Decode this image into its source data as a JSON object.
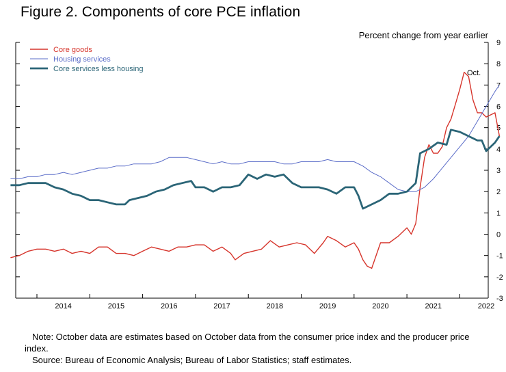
{
  "figure": {
    "title": "Figure 2. Components of core PCE inflation",
    "note": "Note: October data are estimates based on October data from the consumer price index and the producer price index.",
    "source": "Source: Bureau of Economic Analysis; Bureau of Labor Statistics; staff estimates."
  },
  "chart_data": {
    "type": "line",
    "title": "Figure 2. Components of core PCE inflation",
    "ylabel": "Percent change from year earlier",
    "ylim": [
      -3,
      9
    ],
    "yticks": [
      -3,
      -2,
      -1,
      0,
      1,
      2,
      3,
      4,
      5,
      6,
      7,
      8,
      9
    ],
    "y_axis_side": "right",
    "x_axis_type": "time",
    "x_range": [
      "2013-07",
      "2022-10"
    ],
    "xtick_labels": [
      "2014",
      "2015",
      "2016",
      "2017",
      "2018",
      "2019",
      "2020",
      "2021",
      "2022"
    ],
    "grid": false,
    "legend_position": "top-left",
    "annotation": "Oct.",
    "series": [
      {
        "name": "Core goods",
        "color": "#d6342b",
        "line_width": 1.4,
        "points": [
          [
            "2013-07",
            -1.1
          ],
          [
            "2013-09",
            -1.0
          ],
          [
            "2013-11",
            -0.8
          ],
          [
            "2014-01",
            -0.7
          ],
          [
            "2014-03",
            -0.7
          ],
          [
            "2014-05",
            -0.8
          ],
          [
            "2014-07",
            -0.7
          ],
          [
            "2014-09",
            -0.9
          ],
          [
            "2014-11",
            -0.8
          ],
          [
            "2015-01",
            -0.9
          ],
          [
            "2015-03",
            -0.6
          ],
          [
            "2015-05",
            -0.6
          ],
          [
            "2015-07",
            -0.9
          ],
          [
            "2015-09",
            -0.9
          ],
          [
            "2015-11",
            -1.0
          ],
          [
            "2016-01",
            -0.8
          ],
          [
            "2016-03",
            -0.6
          ],
          [
            "2016-05",
            -0.7
          ],
          [
            "2016-07",
            -0.8
          ],
          [
            "2016-09",
            -0.6
          ],
          [
            "2016-11",
            -0.6
          ],
          [
            "2017-01",
            -0.5
          ],
          [
            "2017-03",
            -0.5
          ],
          [
            "2017-05",
            -0.8
          ],
          [
            "2017-07",
            -0.6
          ],
          [
            "2017-09",
            -0.9
          ],
          [
            "2017-10",
            -1.2
          ],
          [
            "2017-12",
            -0.9
          ],
          [
            "2018-02",
            -0.8
          ],
          [
            "2018-04",
            -0.7
          ],
          [
            "2018-06",
            -0.3
          ],
          [
            "2018-08",
            -0.6
          ],
          [
            "2018-10",
            -0.5
          ],
          [
            "2018-12",
            -0.4
          ],
          [
            "2019-02",
            -0.5
          ],
          [
            "2019-04",
            -0.9
          ],
          [
            "2019-06",
            -0.4
          ],
          [
            "2019-07",
            -0.1
          ],
          [
            "2019-09",
            -0.3
          ],
          [
            "2019-11",
            -0.6
          ],
          [
            "2020-01",
            -0.4
          ],
          [
            "2020-02",
            -0.7
          ],
          [
            "2020-03",
            -1.2
          ],
          [
            "2020-04",
            -1.5
          ],
          [
            "2020-05",
            -1.6
          ],
          [
            "2020-07",
            -0.4
          ],
          [
            "2020-09",
            -0.4
          ],
          [
            "2020-11",
            -0.1
          ],
          [
            "2021-01",
            0.3
          ],
          [
            "2021-02",
            0.0
          ],
          [
            "2021-03",
            0.5
          ],
          [
            "2021-04",
            2.2
          ],
          [
            "2021-05",
            3.6
          ],
          [
            "2021-06",
            4.2
          ],
          [
            "2021-07",
            3.8
          ],
          [
            "2021-08",
            3.8
          ],
          [
            "2021-09",
            4.1
          ],
          [
            "2021-10",
            5.0
          ],
          [
            "2021-11",
            5.4
          ],
          [
            "2021-12",
            6.1
          ],
          [
            "2022-01",
            6.8
          ],
          [
            "2022-02",
            7.6
          ],
          [
            "2022-03",
            7.4
          ],
          [
            "2022-04",
            6.3
          ],
          [
            "2022-05",
            5.7
          ],
          [
            "2022-06",
            5.7
          ],
          [
            "2022-07",
            5.5
          ],
          [
            "2022-08",
            5.6
          ],
          [
            "2022-09",
            5.7
          ],
          [
            "2022-10",
            4.6
          ]
        ]
      },
      {
        "name": "Housing services",
        "color": "#5a6cc8",
        "line_width": 1.0,
        "points": [
          [
            "2013-07",
            2.6
          ],
          [
            "2013-09",
            2.6
          ],
          [
            "2013-11",
            2.7
          ],
          [
            "2014-01",
            2.7
          ],
          [
            "2014-03",
            2.8
          ],
          [
            "2014-05",
            2.8
          ],
          [
            "2014-07",
            2.9
          ],
          [
            "2014-09",
            2.8
          ],
          [
            "2014-11",
            2.9
          ],
          [
            "2015-01",
            3.0
          ],
          [
            "2015-03",
            3.1
          ],
          [
            "2015-05",
            3.1
          ],
          [
            "2015-07",
            3.2
          ],
          [
            "2015-09",
            3.2
          ],
          [
            "2015-11",
            3.3
          ],
          [
            "2016-01",
            3.3
          ],
          [
            "2016-03",
            3.3
          ],
          [
            "2016-05",
            3.4
          ],
          [
            "2016-07",
            3.6
          ],
          [
            "2016-09",
            3.6
          ],
          [
            "2016-11",
            3.6
          ],
          [
            "2017-01",
            3.5
          ],
          [
            "2017-03",
            3.4
          ],
          [
            "2017-05",
            3.3
          ],
          [
            "2017-07",
            3.4
          ],
          [
            "2017-09",
            3.3
          ],
          [
            "2017-11",
            3.3
          ],
          [
            "2018-01",
            3.4
          ],
          [
            "2018-03",
            3.4
          ],
          [
            "2018-05",
            3.4
          ],
          [
            "2018-07",
            3.4
          ],
          [
            "2018-09",
            3.3
          ],
          [
            "2018-11",
            3.3
          ],
          [
            "2019-01",
            3.4
          ],
          [
            "2019-03",
            3.4
          ],
          [
            "2019-05",
            3.4
          ],
          [
            "2019-07",
            3.5
          ],
          [
            "2019-09",
            3.4
          ],
          [
            "2019-11",
            3.4
          ],
          [
            "2020-01",
            3.4
          ],
          [
            "2020-03",
            3.2
          ],
          [
            "2020-05",
            2.9
          ],
          [
            "2020-07",
            2.7
          ],
          [
            "2020-09",
            2.4
          ],
          [
            "2020-11",
            2.1
          ],
          [
            "2021-01",
            2.0
          ],
          [
            "2021-03",
            2.0
          ],
          [
            "2021-05",
            2.2
          ],
          [
            "2021-07",
            2.6
          ],
          [
            "2021-09",
            3.1
          ],
          [
            "2021-11",
            3.6
          ],
          [
            "2022-01",
            4.1
          ],
          [
            "2022-03",
            4.6
          ],
          [
            "2022-05",
            5.3
          ],
          [
            "2022-07",
            6.0
          ],
          [
            "2022-09",
            6.7
          ],
          [
            "2022-10",
            7.0
          ]
        ]
      },
      {
        "name": "Core services less housing",
        "color": "#2b6577",
        "line_width": 2.8,
        "points": [
          [
            "2013-07",
            2.3
          ],
          [
            "2013-09",
            2.3
          ],
          [
            "2013-11",
            2.4
          ],
          [
            "2014-01",
            2.4
          ],
          [
            "2014-03",
            2.4
          ],
          [
            "2014-05",
            2.2
          ],
          [
            "2014-07",
            2.1
          ],
          [
            "2014-09",
            1.9
          ],
          [
            "2014-11",
            1.8
          ],
          [
            "2015-01",
            1.6
          ],
          [
            "2015-03",
            1.6
          ],
          [
            "2015-05",
            1.5
          ],
          [
            "2015-07",
            1.4
          ],
          [
            "2015-09",
            1.4
          ],
          [
            "2015-10",
            1.6
          ],
          [
            "2015-12",
            1.7
          ],
          [
            "2016-02",
            1.8
          ],
          [
            "2016-04",
            2.0
          ],
          [
            "2016-06",
            2.1
          ],
          [
            "2016-08",
            2.3
          ],
          [
            "2016-10",
            2.4
          ],
          [
            "2016-12",
            2.5
          ],
          [
            "2017-01",
            2.2
          ],
          [
            "2017-03",
            2.2
          ],
          [
            "2017-05",
            2.0
          ],
          [
            "2017-07",
            2.2
          ],
          [
            "2017-09",
            2.2
          ],
          [
            "2017-11",
            2.3
          ],
          [
            "2018-01",
            2.8
          ],
          [
            "2018-03",
            2.6
          ],
          [
            "2018-05",
            2.8
          ],
          [
            "2018-07",
            2.7
          ],
          [
            "2018-09",
            2.8
          ],
          [
            "2018-11",
            2.4
          ],
          [
            "2019-01",
            2.2
          ],
          [
            "2019-03",
            2.2
          ],
          [
            "2019-05",
            2.2
          ],
          [
            "2019-07",
            2.1
          ],
          [
            "2019-09",
            1.9
          ],
          [
            "2019-11",
            2.2
          ],
          [
            "2020-01",
            2.2
          ],
          [
            "2020-02",
            1.8
          ],
          [
            "2020-03",
            1.2
          ],
          [
            "2020-05",
            1.4
          ],
          [
            "2020-07",
            1.6
          ],
          [
            "2020-09",
            1.9
          ],
          [
            "2020-11",
            1.9
          ],
          [
            "2021-01",
            2.0
          ],
          [
            "2021-03",
            2.4
          ],
          [
            "2021-04",
            3.8
          ],
          [
            "2021-06",
            4.0
          ],
          [
            "2021-08",
            4.3
          ],
          [
            "2021-10",
            4.2
          ],
          [
            "2021-11",
            4.9
          ],
          [
            "2022-01",
            4.8
          ],
          [
            "2022-03",
            4.6
          ],
          [
            "2022-05",
            4.4
          ],
          [
            "2022-06",
            4.4
          ],
          [
            "2022-07",
            3.9
          ],
          [
            "2022-09",
            4.3
          ],
          [
            "2022-10",
            4.6
          ]
        ]
      }
    ]
  }
}
